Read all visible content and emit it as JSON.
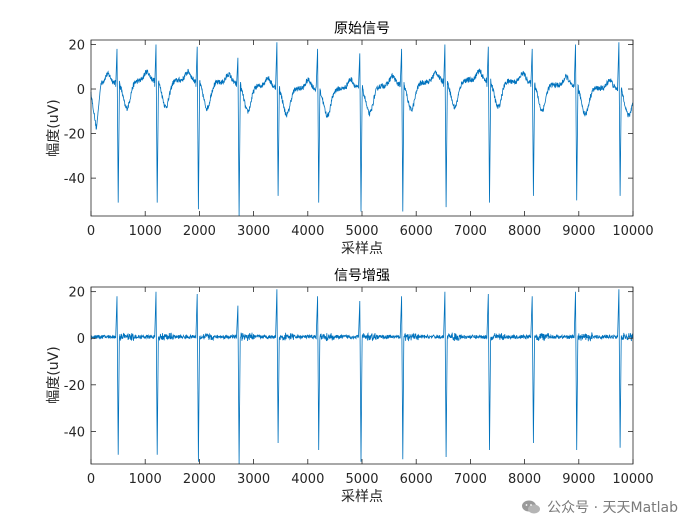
{
  "chart_data": [
    {
      "type": "line",
      "title": "原始信号",
      "xlabel": "采样点",
      "ylabel": "幅度(uV)",
      "xlim": [
        0,
        10000
      ],
      "ylim": [
        -57,
        22
      ],
      "xticks": [
        0,
        1000,
        2000,
        3000,
        4000,
        5000,
        6000,
        7000,
        8000,
        9000,
        10000
      ],
      "yticks": [
        20,
        0,
        -20,
        -40
      ],
      "color": "#0072BD",
      "beats": [
        {
          "x": 490,
          "peak": 18,
          "trough": -51
        },
        {
          "x": 1210,
          "peak": 20,
          "trough": -51
        },
        {
          "x": 1970,
          "peak": 19,
          "trough": -54
        },
        {
          "x": 2720,
          "peak": 14,
          "trough": -57
        },
        {
          "x": 3440,
          "peak": 21,
          "trough": -48
        },
        {
          "x": 4190,
          "peak": 18,
          "trough": -51
        },
        {
          "x": 4970,
          "peak": 16,
          "trough": -55
        },
        {
          "x": 5740,
          "peak": 18,
          "trough": -55
        },
        {
          "x": 6540,
          "peak": 20,
          "trough": -53
        },
        {
          "x": 7340,
          "peak": 19,
          "trough": -51
        },
        {
          "x": 8150,
          "peak": 18,
          "trough": -48
        },
        {
          "x": 8950,
          "peak": 20,
          "trough": -50
        },
        {
          "x": 9750,
          "peak": 21,
          "trough": -48
        }
      ]
    },
    {
      "type": "line",
      "title": "信号增强",
      "xlabel": "采样点",
      "ylabel": "幅度(uV)",
      "xlim": [
        0,
        10000
      ],
      "ylim": [
        -54,
        22
      ],
      "xticks": [
        0,
        1000,
        2000,
        3000,
        4000,
        5000,
        6000,
        7000,
        8000,
        9000,
        10000
      ],
      "yticks": [
        20,
        0,
        -20,
        -40
      ],
      "color": "#0072BD",
      "beats": [
        {
          "x": 490,
          "peak": 18,
          "trough": -50
        },
        {
          "x": 1210,
          "peak": 20,
          "trough": -50
        },
        {
          "x": 1970,
          "peak": 19,
          "trough": -53
        },
        {
          "x": 2720,
          "peak": 14,
          "trough": -54
        },
        {
          "x": 3440,
          "peak": 21,
          "trough": -45
        },
        {
          "x": 4190,
          "peak": 18,
          "trough": -48
        },
        {
          "x": 4970,
          "peak": 16,
          "trough": -53
        },
        {
          "x": 5740,
          "peak": 18,
          "trough": -52
        },
        {
          "x": 6540,
          "peak": 20,
          "trough": -51
        },
        {
          "x": 7340,
          "peak": 19,
          "trough": -48
        },
        {
          "x": 8150,
          "peak": 18,
          "trough": -45
        },
        {
          "x": 8950,
          "peak": 20,
          "trough": -48
        },
        {
          "x": 9750,
          "peak": 21,
          "trough": -47
        }
      ]
    }
  ],
  "watermark": {
    "text": "公众号 · 天天Matlab",
    "icon": "wechat-icon"
  }
}
